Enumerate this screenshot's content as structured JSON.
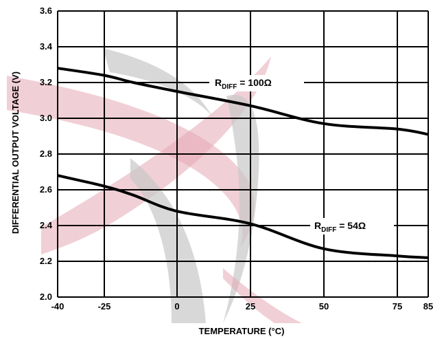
{
  "chart_data": {
    "type": "line",
    "xlabel": "TEMPERATURE (°C)",
    "ylabel": "DIFFERENTIAL OUTPUT VOLTAGE (V)",
    "xlim": [
      -40,
      85
    ],
    "ylim": [
      2.0,
      3.6
    ],
    "x_ticks": [
      -40,
      -25,
      0,
      25,
      50,
      75,
      85
    ],
    "x_tick_labels": [
      "-40",
      "-25",
      "0",
      "25",
      "50",
      "75",
      "85"
    ],
    "y_ticks": [
      2.0,
      2.2,
      2.4,
      2.6,
      2.8,
      3.0,
      3.2,
      3.4,
      3.6
    ],
    "y_tick_labels": [
      "2.0",
      "2.2",
      "2.4",
      "2.6",
      "2.8",
      "3.0",
      "3.2",
      "3.4",
      "3.6"
    ],
    "grid": true,
    "series": [
      {
        "name": "R",
        "name_sub": "DIFF",
        "name_suffix": " = 100Ω",
        "x": [
          -40,
          -25,
          -15,
          0,
          25,
          50,
          75,
          85
        ],
        "y": [
          3.28,
          3.24,
          3.2,
          3.15,
          3.07,
          2.97,
          2.94,
          2.91
        ]
      },
      {
        "name": "R",
        "name_sub": "DIFF",
        "name_suffix": " = 54Ω",
        "x": [
          -40,
          -25,
          -15,
          0,
          25,
          50,
          75,
          85
        ],
        "y": [
          2.68,
          2.62,
          2.57,
          2.48,
          2.41,
          2.27,
          2.23,
          2.22
        ]
      }
    ]
  }
}
